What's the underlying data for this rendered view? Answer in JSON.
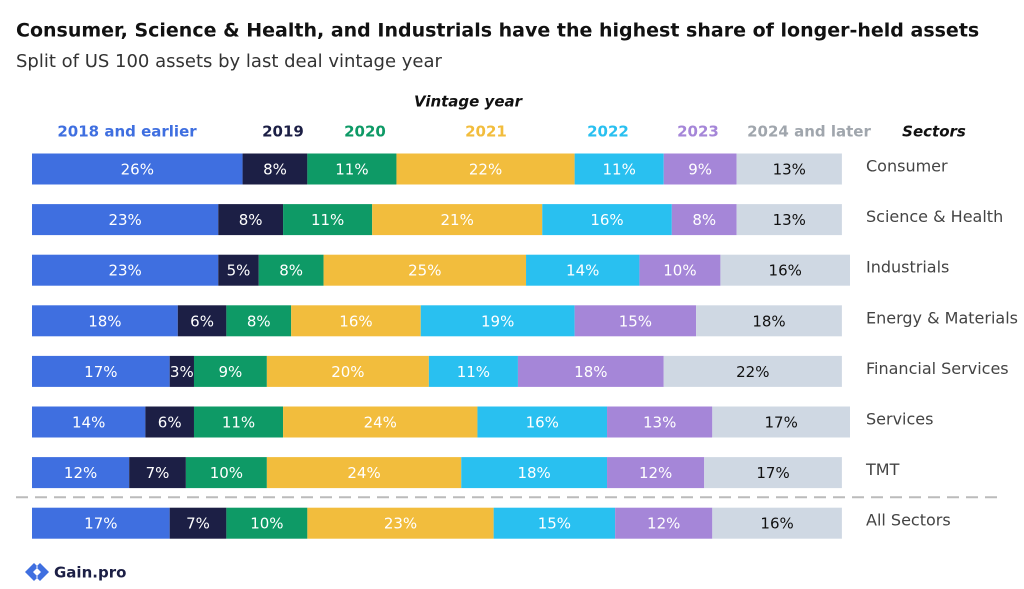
{
  "chart_data": {
    "type": "stacked-bar-horizontal",
    "title": "Consumer, Science & Health, and Industrials have the highest share of longer-held assets",
    "subtitle": "Split of US 100 assets by last deal vintage year",
    "legend_title": "Vintage year",
    "category_axis_title": "Sectors",
    "categories": [
      "Consumer",
      "Science & Health",
      "Industrials",
      "Energy & Materials",
      "Financial Services",
      "Services",
      "TMT",
      "All Sectors"
    ],
    "xlim": [
      0,
      101
    ],
    "series": [
      {
        "name": "2018 and earlier",
        "color": "#3f6fe0",
        "values": [
          26,
          23,
          23,
          18,
          17,
          14,
          12,
          17
        ],
        "value_labels": [
          "26%",
          "23%",
          "23%",
          "18%",
          "17%",
          "14%",
          "12%",
          "17%"
        ]
      },
      {
        "name": "2019",
        "color": "#1c1f45",
        "values": [
          8,
          8,
          5,
          6,
          3,
          6,
          7,
          7
        ],
        "value_labels": [
          "8%",
          "8%",
          "5%",
          "6%",
          "3%",
          "6%",
          "7%",
          "7%"
        ]
      },
      {
        "name": "2020",
        "color": "#0e9a66",
        "values": [
          11,
          11,
          8,
          8,
          9,
          11,
          10,
          10
        ],
        "value_labels": [
          "11%",
          "11%",
          "8%",
          "8%",
          "9%",
          "11%",
          "10%",
          "10%"
        ]
      },
      {
        "name": "2021",
        "color": "#f2bd3d",
        "values": [
          22,
          21,
          25,
          16,
          20,
          24,
          24,
          23
        ],
        "value_labels": [
          "22%",
          "21%",
          "25%",
          "16%",
          "20%",
          "24%",
          "24%",
          "23%"
        ]
      },
      {
        "name": "2022",
        "color": "#29c0f0",
        "values": [
          11,
          16,
          14,
          19,
          11,
          16,
          18,
          15
        ],
        "value_labels": [
          "11%",
          "16%",
          "14%",
          "19%",
          "11%",
          "16%",
          "18%",
          "15%"
        ]
      },
      {
        "name": "2023",
        "color": "#a586d8",
        "values": [
          9,
          8,
          10,
          15,
          18,
          13,
          12,
          12
        ],
        "value_labels": [
          "9%",
          "8%",
          "10%",
          "15%",
          "18%",
          "13%",
          "12%",
          "12%"
        ]
      },
      {
        "name": "2024 and later",
        "color": "#cfd8e3",
        "values": [
          13,
          13,
          16,
          18,
          22,
          17,
          17,
          16
        ],
        "value_labels": [
          "13%",
          "13%",
          "16%",
          "18%",
          "22%",
          "17%",
          "17%",
          "16%"
        ]
      }
    ]
  },
  "brand": "Gain.pro"
}
